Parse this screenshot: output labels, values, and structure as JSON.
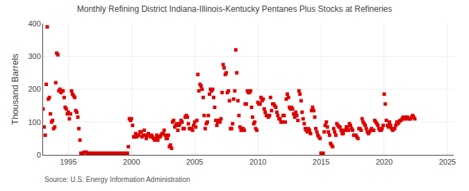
{
  "chart_data": {
    "type": "scatter",
    "title": "Monthly Refining District Indiana-Illinois-Kentucky Pentanes Plus Stocks at Refineries",
    "ylabel": "Thousand Barrels",
    "annotations": [
      "Source: U.S. Energy Information Administration"
    ],
    "color": "#dd0000",
    "marker": "square",
    "grid": true,
    "xlim": [
      1993.0,
      2025.5
    ],
    "ylim": [
      0,
      400
    ],
    "xticks": [
      1995,
      2000,
      2005,
      2010,
      2015,
      2020,
      2025
    ],
    "yticks": [
      0,
      100,
      200,
      300,
      400
    ],
    "x": [
      1993.0,
      1993.08,
      1993.17,
      1993.25,
      1993.33,
      1993.42,
      1993.5,
      1993.58,
      1993.67,
      1993.75,
      1993.83,
      1993.92,
      1994.0,
      1994.08,
      1994.17,
      1994.25,
      1994.33,
      1994.42,
      1994.5,
      1994.58,
      1994.67,
      1994.75,
      1994.83,
      1994.92,
      1995.0,
      1995.08,
      1995.17,
      1995.25,
      1995.33,
      1995.42,
      1995.5,
      1995.58,
      1995.67,
      1995.75,
      1995.83,
      1995.92,
      1996.0,
      1996.08,
      1996.17,
      1996.25,
      1996.33,
      1996.42,
      1996.5,
      1996.58,
      1996.67,
      1996.75,
      1996.83,
      1996.92,
      1997.0,
      1997.08,
      1997.17,
      1997.25,
      1997.33,
      1997.42,
      1997.5,
      1997.58,
      1997.67,
      1997.75,
      1997.83,
      1997.92,
      1998.0,
      1998.08,
      1998.17,
      1998.25,
      1998.33,
      1998.42,
      1998.5,
      1998.58,
      1998.67,
      1998.75,
      1998.83,
      1998.92,
      1999.0,
      1999.08,
      1999.17,
      1999.25,
      1999.33,
      1999.42,
      1999.5,
      1999.58,
      1999.67,
      1999.75,
      1999.83,
      1999.92,
      2000.0,
      2000.08,
      2000.17,
      2000.25,
      2000.33,
      2000.42,
      2000.5,
      2000.58,
      2000.67,
      2000.75,
      2000.83,
      2000.92,
      2001.0,
      2001.08,
      2001.17,
      2001.25,
      2001.33,
      2001.42,
      2001.5,
      2001.58,
      2001.67,
      2001.75,
      2001.83,
      2001.92,
      2002.0,
      2002.08,
      2002.17,
      2002.25,
      2002.33,
      2002.42,
      2002.5,
      2002.58,
      2002.67,
      2002.75,
      2002.83,
      2002.92,
      2003.0,
      2003.08,
      2003.17,
      2003.25,
      2003.33,
      2003.42,
      2003.5,
      2003.58,
      2003.67,
      2003.75,
      2003.83,
      2003.92,
      2004.0,
      2004.08,
      2004.17,
      2004.25,
      2004.33,
      2004.42,
      2004.5,
      2004.58,
      2004.67,
      2004.75,
      2004.83,
      2004.92,
      2005.0,
      2005.08,
      2005.17,
      2005.25,
      2005.33,
      2005.42,
      2005.5,
      2005.58,
      2005.67,
      2005.75,
      2005.83,
      2005.92,
      2006.0,
      2006.08,
      2006.17,
      2006.25,
      2006.33,
      2006.42,
      2006.5,
      2006.58,
      2006.67,
      2006.75,
      2006.83,
      2006.92,
      2007.0,
      2007.08,
      2007.17,
      2007.25,
      2007.33,
      2007.42,
      2007.5,
      2007.58,
      2007.67,
      2007.75,
      2007.83,
      2007.92,
      2008.0,
      2008.08,
      2008.17,
      2008.25,
      2008.33,
      2008.42,
      2008.5,
      2008.58,
      2008.67,
      2008.75,
      2008.83,
      2008.92,
      2009.0,
      2009.08,
      2009.17,
      2009.25,
      2009.33,
      2009.42,
      2009.5,
      2009.58,
      2009.67,
      2009.75,
      2009.83,
      2009.92,
      2010.0,
      2010.08,
      2010.17,
      2010.25,
      2010.33,
      2010.42,
      2010.5,
      2010.58,
      2010.67,
      2010.75,
      2010.83,
      2010.92,
      2011.0,
      2011.08,
      2011.17,
      2011.25,
      2011.33,
      2011.42,
      2011.5,
      2011.58,
      2011.67,
      2011.75,
      2011.83,
      2011.92,
      2012.0,
      2012.08,
      2012.17,
      2012.25,
      2012.33,
      2012.42,
      2012.5,
      2012.58,
      2012.67,
      2012.75,
      2012.83,
      2012.92,
      2013.0,
      2013.08,
      2013.17,
      2013.25,
      2013.33,
      2013.42,
      2013.5,
      2013.58,
      2013.67,
      2013.75,
      2013.83,
      2013.92,
      2014.0,
      2014.08,
      2014.17,
      2014.25,
      2014.33,
      2014.42,
      2014.5,
      2014.58,
      2014.67,
      2014.75,
      2014.83,
      2014.92,
      2015.0,
      2015.08,
      2015.17,
      2015.25,
      2015.33,
      2015.42,
      2015.5,
      2015.58,
      2015.67,
      2015.75,
      2015.83,
      2015.92,
      2016.0,
      2016.08,
      2016.17,
      2016.25,
      2016.33,
      2016.42,
      2016.5,
      2016.58,
      2016.67,
      2016.75,
      2016.83,
      2016.92,
      2017.0,
      2017.08,
      2017.17,
      2017.25,
      2017.33,
      2017.42,
      2017.5,
      2017.58,
      2017.67,
      2017.75,
      2017.83,
      2017.92,
      2018.0,
      2018.08,
      2018.17,
      2018.25,
      2018.33,
      2018.42,
      2018.5,
      2018.58,
      2018.67,
      2018.75,
      2018.83,
      2018.92,
      2019.0,
      2019.08,
      2019.17,
      2019.25,
      2019.33,
      2019.42,
      2019.5,
      2019.58,
      2019.67,
      2019.75,
      2019.83,
      2019.92,
      2020.0,
      2020.08,
      2020.17,
      2020.25,
      2020.33,
      2020.42,
      2020.5,
      2020.58,
      2020.67,
      2020.75,
      2020.83,
      2020.92,
      2021.0,
      2021.08,
      2021.17,
      2021.25,
      2021.33,
      2021.42,
      2021.5,
      2021.58,
      2021.67,
      2021.75,
      2021.83,
      2021.92,
      2022.0,
      2022.08,
      2022.17,
      2022.25,
      2022.33,
      2022.42
    ],
    "values": [
      140,
      85,
      60,
      215,
      390,
      170,
      175,
      125,
      100,
      105,
      80,
      85,
      220,
      310,
      305,
      195,
      200,
      190,
      195,
      195,
      175,
      145,
      140,
      125,
      130,
      110,
      125,
      195,
      185,
      180,
      175,
      135,
      130,
      115,
      80,
      45,
      5,
      5,
      5,
      8,
      8,
      8,
      5,
      5,
      5,
      5,
      5,
      5,
      5,
      5,
      5,
      5,
      5,
      5,
      5,
      5,
      5,
      5,
      5,
      5,
      5,
      5,
      5,
      5,
      5,
      5,
      5,
      5,
      5,
      5,
      5,
      5,
      5,
      5,
      5,
      5,
      5,
      5,
      5,
      5,
      5,
      25,
      110,
      105,
      110,
      90,
      55,
      55,
      65,
      55,
      60,
      60,
      70,
      70,
      55,
      60,
      75,
      60,
      50,
      60,
      65,
      60,
      55,
      60,
      55,
      50,
      45,
      50,
      60,
      45,
      55,
      55,
      60,
      65,
      65,
      75,
      60,
      50,
      50,
      60,
      25,
      30,
      20,
      100,
      105,
      85,
      90,
      95,
      75,
      90,
      95,
      105,
      100,
      80,
      80,
      115,
      120,
      115,
      95,
      80,
      80,
      80,
      75,
      90,
      100,
      85,
      105,
      245,
      195,
      215,
      210,
      200,
      175,
      120,
      80,
      95,
      100,
      120,
      185,
      200,
      195,
      200,
      175,
      145,
      105,
      90,
      100,
      105,
      100,
      110,
      190,
      275,
      265,
      245,
      250,
      190,
      195,
      165,
      80,
      80,
      95,
      170,
      195,
      320,
      250,
      165,
      120,
      85,
      75,
      80,
      80,
      75,
      155,
      155,
      195,
      190,
      190,
      195,
      145,
      115,
      95,
      100,
      80,
      75,
      160,
      155,
      155,
      175,
      165,
      170,
      140,
      130,
      120,
      120,
      115,
      120,
      175,
      135,
      155,
      155,
      150,
      145,
      130,
      120,
      110,
      110,
      100,
      100,
      120,
      120,
      100,
      170,
      185,
      175,
      145,
      140,
      145,
      140,
      125,
      115,
      130,
      120,
      105,
      195,
      185,
      165,
      130,
      110,
      95,
      80,
      75,
      70,
      80,
      75,
      65,
      135,
      145,
      135,
      115,
      80,
      70,
      60,
      55,
      50,
      5,
      5,
      5,
      70,
      90,
      100,
      85,
      70,
      60,
      35,
      30,
      25,
      80,
      70,
      60,
      95,
      90,
      85,
      85,
      75,
      65,
      65,
      75,
      75,
      85,
      85,
      75,
      95,
      90,
      80,
      75,
      60,
      60,
      60,
      55,
      50,
      80,
      80,
      75,
      110,
      100,
      95,
      90,
      80,
      70,
      65,
      70,
      75,
      80,
      75,
      75,
      105,
      100,
      95,
      90,
      80,
      75,
      75,
      80,
      90,
      185,
      155,
      105,
      90,
      85,
      100,
      90,
      80,
      75,
      80,
      80,
      90,
      100,
      95,
      100,
      105,
      105,
      110,
      115,
      110,
      110,
      115,
      115,
      110,
      110,
      110,
      115,
      120,
      115,
      110
    ]
  }
}
